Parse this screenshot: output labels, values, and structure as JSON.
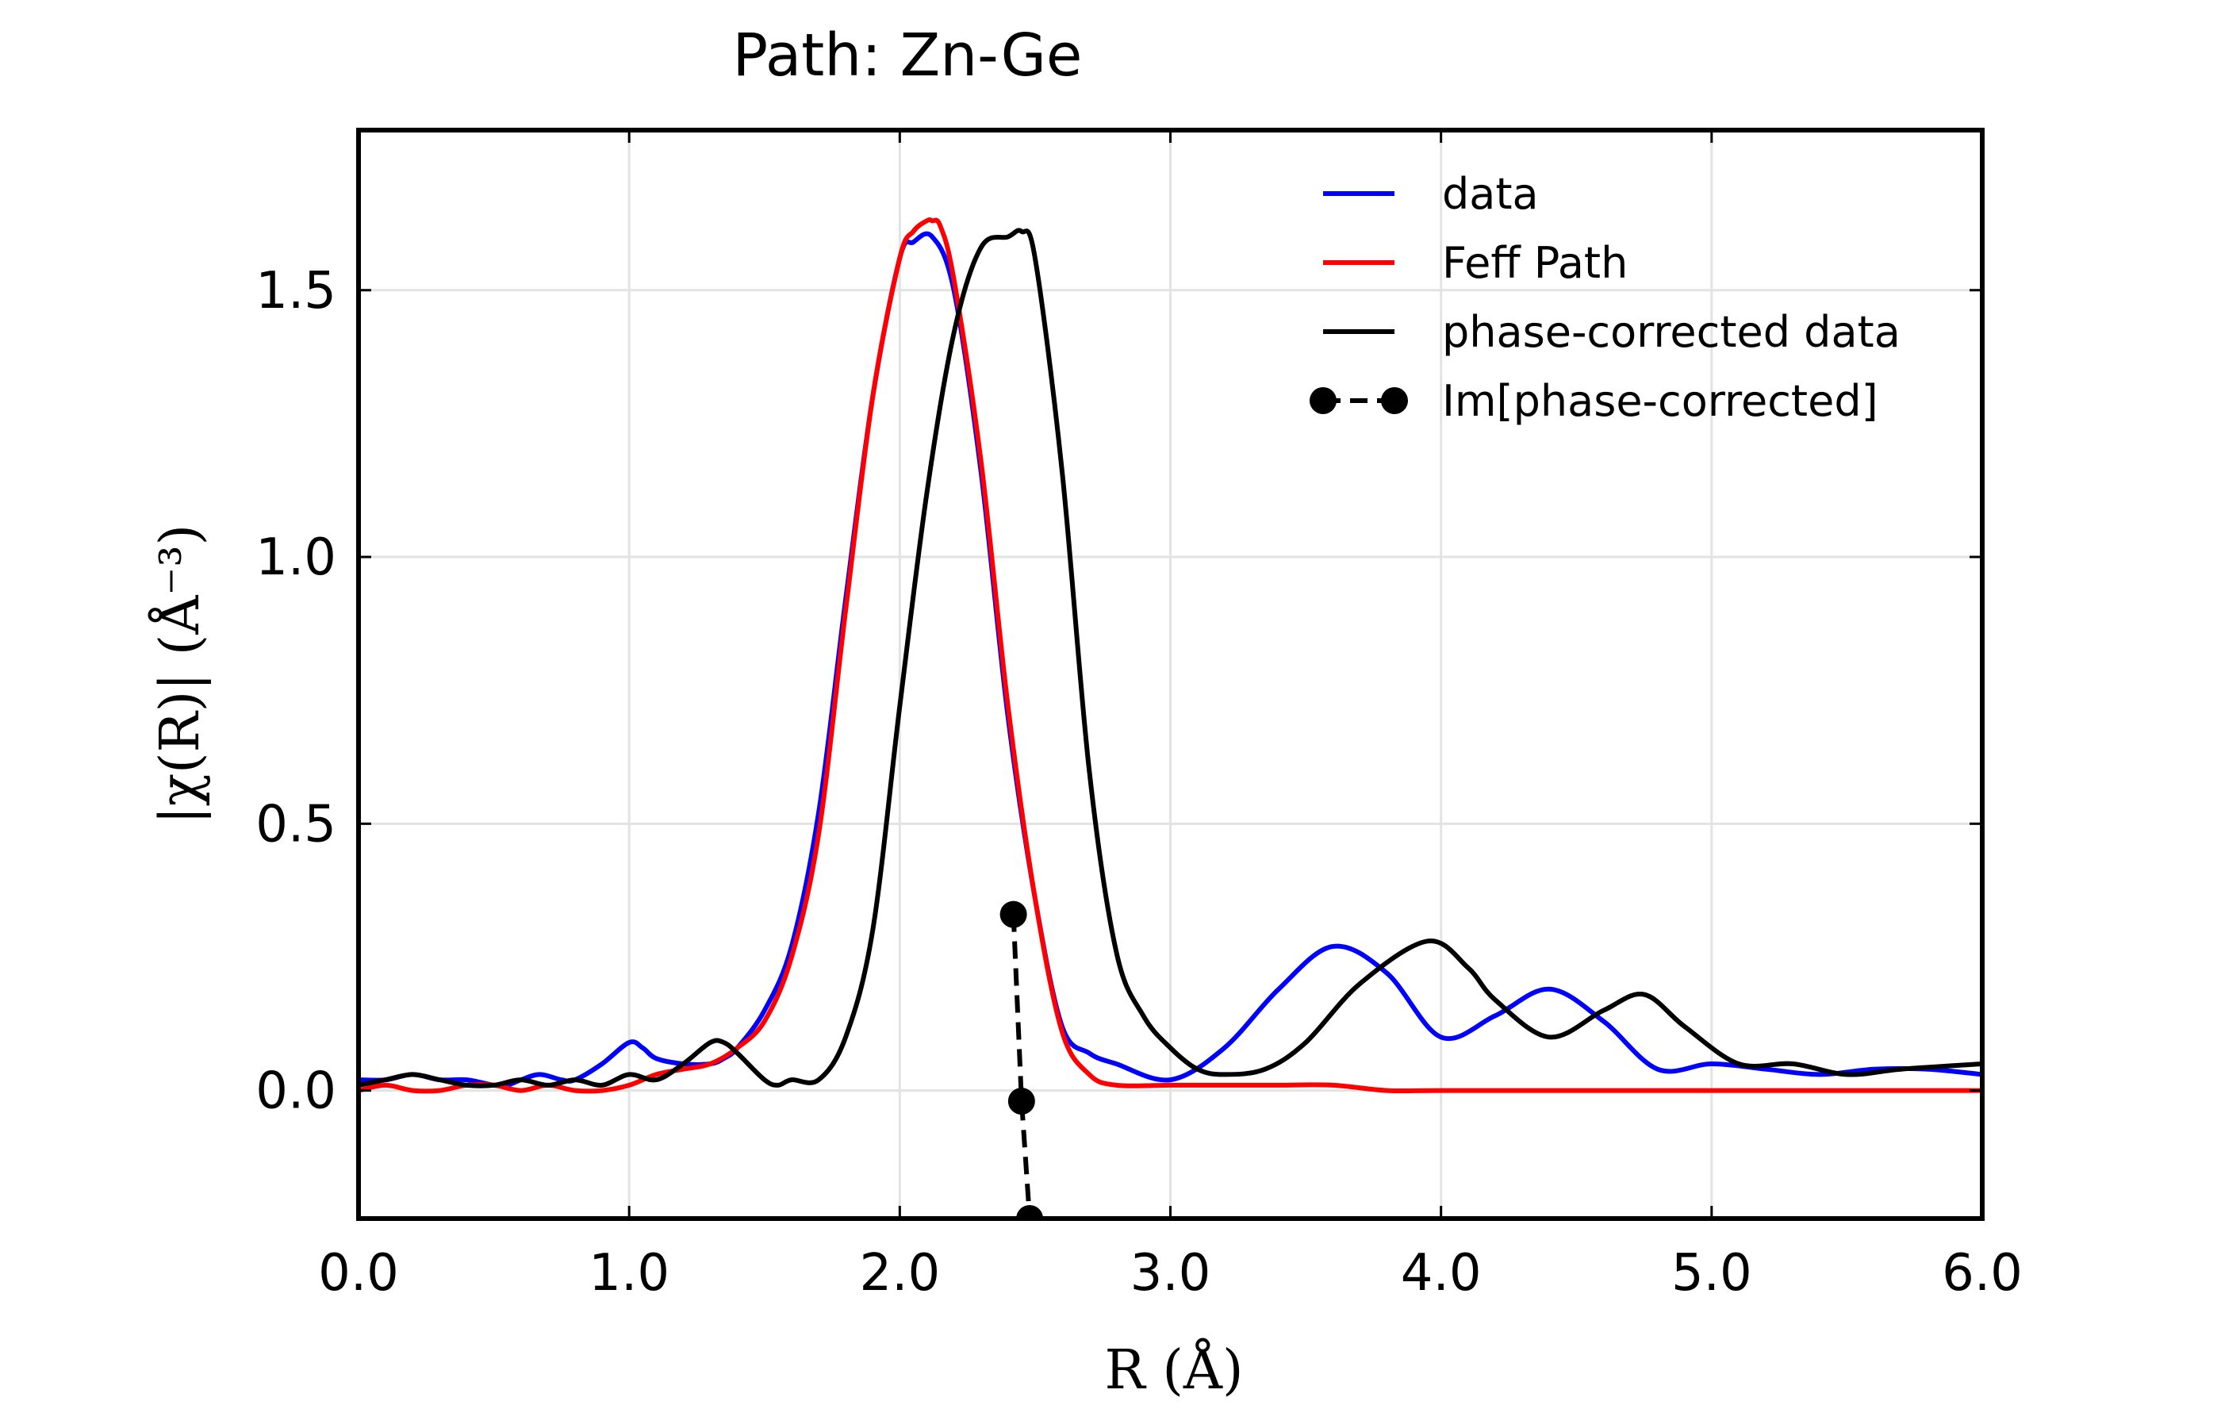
{
  "chart_data": {
    "type": "line",
    "title": "Path: Zn-Ge",
    "xlabel": "R (Å)",
    "ylabel": "|χ(R)| (Å⁻³)",
    "xlim": [
      0.0,
      6.0
    ],
    "ylim": [
      -0.24,
      1.8
    ],
    "grid": true,
    "legend_position": "top-right",
    "x_ticks": [
      0.0,
      1.0,
      2.0,
      3.0,
      4.0,
      5.0,
      6.0
    ],
    "x_tick_labels": [
      "0.0",
      "1.0",
      "2.0",
      "3.0",
      "4.0",
      "5.0",
      "6.0"
    ],
    "y_ticks": [
      0.0,
      0.5,
      1.0,
      1.5
    ],
    "y_tick_labels": [
      "0.0",
      "0.5",
      "1.0",
      "1.5"
    ],
    "series": [
      {
        "name": "data",
        "color": "#0000ff",
        "style": "solid",
        "x": [
          0.0,
          0.1,
          0.2,
          0.3,
          0.4,
          0.5,
          0.55,
          0.6,
          0.67,
          0.75,
          0.8,
          0.9,
          1.0,
          1.05,
          1.1,
          1.2,
          1.3,
          1.35,
          1.4,
          1.5,
          1.6,
          1.7,
          1.8,
          1.9,
          2.0,
          2.05,
          2.12,
          2.2,
          2.3,
          2.4,
          2.5,
          2.6,
          2.7,
          2.8,
          3.0,
          3.2,
          3.4,
          3.6,
          3.8,
          4.0,
          4.2,
          4.4,
          4.6,
          4.8,
          5.0,
          5.2,
          5.4,
          5.6,
          5.8,
          6.0
        ],
        "y": [
          0.02,
          0.02,
          0.03,
          0.02,
          0.02,
          0.01,
          0.01,
          0.02,
          0.03,
          0.02,
          0.02,
          0.05,
          0.09,
          0.08,
          0.06,
          0.05,
          0.05,
          0.06,
          0.08,
          0.15,
          0.27,
          0.52,
          0.92,
          1.3,
          1.56,
          1.59,
          1.6,
          1.5,
          1.16,
          0.7,
          0.36,
          0.12,
          0.07,
          0.05,
          0.02,
          0.08,
          0.19,
          0.27,
          0.22,
          0.1,
          0.14,
          0.19,
          0.13,
          0.04,
          0.05,
          0.04,
          0.03,
          0.04,
          0.04,
          0.03
        ]
      },
      {
        "name": "Feff Path",
        "color": "#ff0000",
        "style": "solid",
        "x": [
          0.0,
          0.1,
          0.2,
          0.3,
          0.4,
          0.5,
          0.6,
          0.7,
          0.8,
          0.9,
          1.0,
          1.1,
          1.2,
          1.3,
          1.4,
          1.5,
          1.6,
          1.7,
          1.8,
          1.9,
          2.0,
          2.05,
          2.1,
          2.12,
          2.15,
          2.2,
          2.3,
          2.4,
          2.5,
          2.6,
          2.7,
          2.8,
          3.0,
          3.2,
          3.4,
          3.6,
          3.8,
          4.0,
          4.5,
          5.0,
          5.5,
          6.0
        ],
        "y": [
          0.0,
          0.01,
          0.0,
          0.0,
          0.01,
          0.01,
          0.0,
          0.01,
          0.0,
          0.0,
          0.01,
          0.03,
          0.04,
          0.05,
          0.08,
          0.13,
          0.25,
          0.48,
          0.9,
          1.3,
          1.56,
          1.61,
          1.63,
          1.63,
          1.62,
          1.52,
          1.18,
          0.72,
          0.36,
          0.11,
          0.03,
          0.01,
          0.01,
          0.01,
          0.01,
          0.01,
          0.0,
          0.0,
          0.0,
          0.0,
          0.0,
          0.0
        ]
      },
      {
        "name": "phase-corrected data",
        "color": "#000000",
        "style": "solid",
        "x": [
          0.0,
          0.1,
          0.2,
          0.3,
          0.4,
          0.5,
          0.6,
          0.7,
          0.8,
          0.9,
          1.0,
          1.1,
          1.2,
          1.3,
          1.35,
          1.4,
          1.5,
          1.55,
          1.6,
          1.7,
          1.8,
          1.9,
          2.0,
          2.1,
          2.2,
          2.3,
          2.4,
          2.45,
          2.5,
          2.6,
          2.7,
          2.8,
          2.9,
          3.0,
          3.1,
          3.2,
          3.35,
          3.5,
          3.7,
          3.95,
          4.1,
          4.2,
          4.4,
          4.6,
          4.75,
          4.9,
          5.1,
          5.3,
          5.5,
          5.7,
          6.0
        ],
        "y": [
          0.01,
          0.02,
          0.03,
          0.02,
          0.01,
          0.01,
          0.02,
          0.01,
          0.02,
          0.01,
          0.03,
          0.02,
          0.05,
          0.09,
          0.09,
          0.07,
          0.02,
          0.01,
          0.02,
          0.02,
          0.1,
          0.3,
          0.72,
          1.12,
          1.42,
          1.58,
          1.6,
          1.61,
          1.56,
          1.16,
          0.6,
          0.26,
          0.14,
          0.08,
          0.04,
          0.03,
          0.04,
          0.09,
          0.2,
          0.28,
          0.23,
          0.17,
          0.1,
          0.15,
          0.18,
          0.12,
          0.05,
          0.05,
          0.03,
          0.04,
          0.05
        ]
      },
      {
        "name": "Im[phase-corrected]",
        "color": "#000000",
        "style": "dashed-markers",
        "x": [
          2.42,
          2.45,
          2.48
        ],
        "y": [
          0.33,
          -0.02,
          -0.24
        ]
      }
    ]
  }
}
